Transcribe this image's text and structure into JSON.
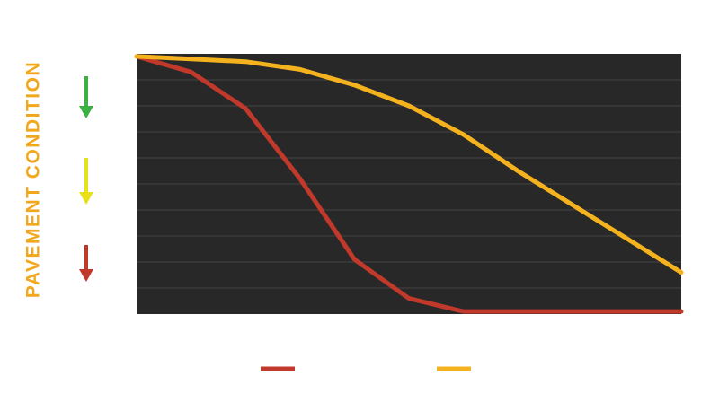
{
  "chart_data": {
    "type": "line",
    "y_label": "PAVEMENT CONDITION",
    "x": [
      0,
      1,
      2,
      3,
      4,
      5,
      6,
      7,
      8,
      9,
      10
    ],
    "xlim": [
      0,
      10
    ],
    "ylim": [
      0,
      10
    ],
    "yticks": [
      1,
      2,
      3,
      4,
      5,
      6,
      7,
      8,
      9
    ],
    "grid": true,
    "series": [
      {
        "color": "#c0392b",
        "values": [
          9.9,
          9.3,
          7.9,
          5.2,
          2.1,
          0.6,
          0.1,
          0.1,
          0.1,
          0.1,
          0.1
        ]
      },
      {
        "color": "#f5b21f",
        "values": [
          9.9,
          9.8,
          9.7,
          9.4,
          8.8,
          8.0,
          6.9,
          5.5,
          4.2,
          2.9,
          1.6
        ]
      }
    ]
  }
}
